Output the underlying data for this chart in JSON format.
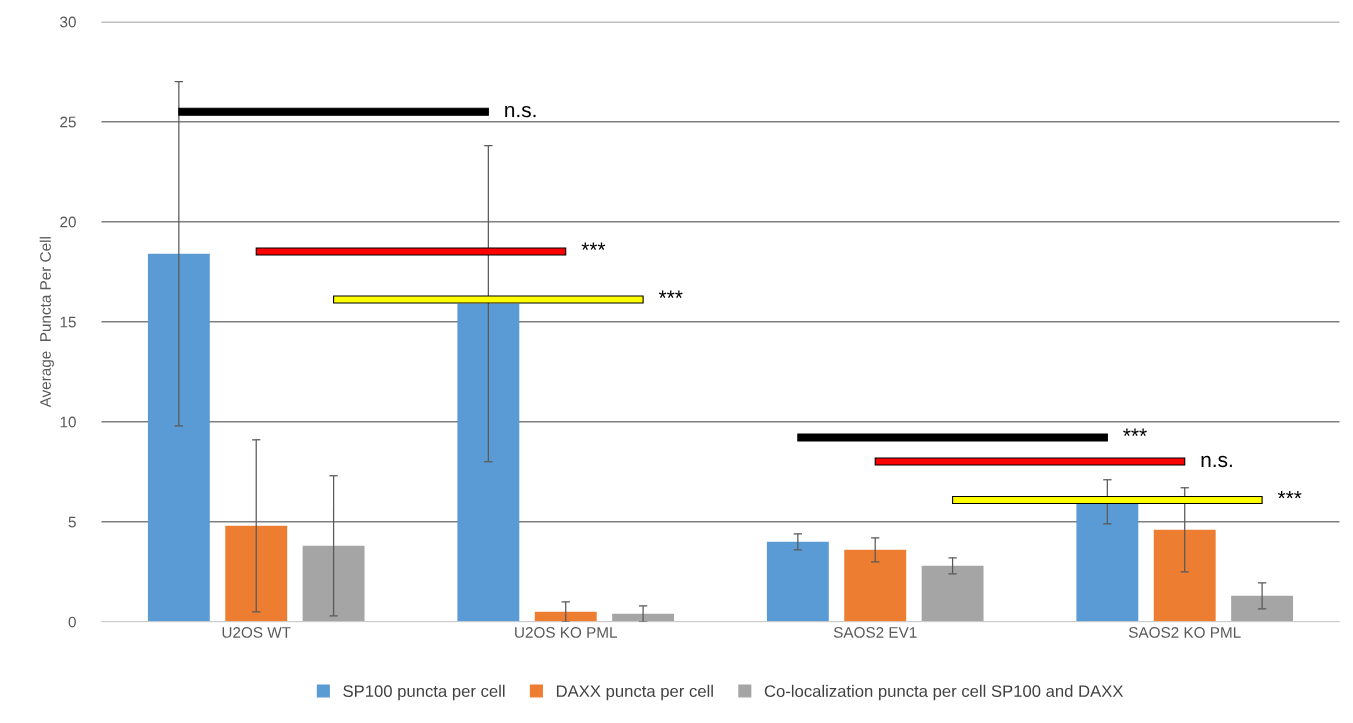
{
  "chart_data": {
    "type": "bar",
    "ylabel": "Average  Puncta Per Cell",
    "categories": [
      "U2OS WT",
      "U2OS KO PML",
      "SAOS2 EV1",
      "SAOS2 KO PML"
    ],
    "series": [
      {
        "name": "SP100 puncta per cell",
        "color": "#5b9bd5",
        "values": [
          18.4,
          15.9,
          4.0,
          6.0
        ],
        "errors": [
          8.6,
          7.9,
          0.4,
          1.1
        ]
      },
      {
        "name": "DAXX puncta per cell",
        "color": "#ed7d31",
        "values": [
          4.8,
          0.5,
          3.6,
          4.6
        ],
        "errors": [
          4.3,
          0.5,
          0.6,
          2.1
        ]
      },
      {
        "name": "Co-localization puncta per cell SP100 and DAXX",
        "color": "#a5a5a5",
        "values": [
          3.8,
          0.4,
          2.8,
          1.3
        ],
        "errors": [
          3.5,
          0.4,
          0.4,
          0.65
        ]
      }
    ],
    "ylim": [
      0,
      30
    ],
    "yticks": [
      0,
      5,
      10,
      15,
      20,
      25,
      30
    ],
    "grid": "y",
    "legend": "bottom",
    "annotations": [
      "n.s.",
      "***",
      "***",
      "***",
      "n.s.",
      "***"
    ]
  }
}
